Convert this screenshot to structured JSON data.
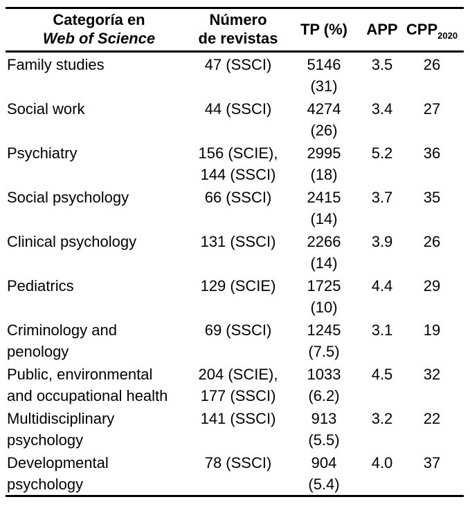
{
  "table": {
    "header": {
      "categoria": {
        "line1": "Categoría en",
        "line2": "Web of Science"
      },
      "numero": {
        "line1": "Número",
        "line2": "de revistas"
      },
      "tp": "TP (%)",
      "app": "APP",
      "cpp": {
        "label": "CPP",
        "subscript": "2020"
      }
    },
    "rows": [
      {
        "category": [
          "Family studies"
        ],
        "journals": [
          "47 (SSCI)"
        ],
        "tp": [
          "5146",
          "(31)"
        ],
        "app": "3.5",
        "cpp": "26"
      },
      {
        "category": [
          "Social work"
        ],
        "journals": [
          "44 (SSCI)"
        ],
        "tp": [
          "4274",
          "(26)"
        ],
        "app": "3.4",
        "cpp": "27"
      },
      {
        "category": [
          "Psychiatry"
        ],
        "journals": [
          "156 (SCIE),",
          "144 (SSCI)"
        ],
        "tp": [
          "2995",
          "(18)"
        ],
        "app": "5.2",
        "cpp": "36"
      },
      {
        "category": [
          "Social psychology"
        ],
        "journals": [
          "66 (SSCI)"
        ],
        "tp": [
          "2415",
          "(14)"
        ],
        "app": "3.7",
        "cpp": "35"
      },
      {
        "category": [
          "Clinical psychology"
        ],
        "journals": [
          "131 (SSCI)"
        ],
        "tp": [
          "2266",
          "(14)"
        ],
        "app": "3.9",
        "cpp": "26"
      },
      {
        "category": [
          "Pediatrics"
        ],
        "journals": [
          "129 (SCIE)"
        ],
        "tp": [
          "1725",
          "(10)"
        ],
        "app": "4.4",
        "cpp": "29"
      },
      {
        "category": [
          "Criminology and",
          "penology"
        ],
        "journals": [
          "69 (SSCI)"
        ],
        "tp": [
          "1245",
          "(7.5)"
        ],
        "app": "3.1",
        "cpp": "19"
      },
      {
        "category": [
          "Public, environmental",
          "and occupational health"
        ],
        "journals": [
          "204 (SCIE),",
          "177 (SSCI)"
        ],
        "tp": [
          "1033",
          "(6.2)"
        ],
        "app": "4.5",
        "cpp": "32"
      },
      {
        "category": [
          "Multidisciplinary",
          "psychology"
        ],
        "journals": [
          "141 (SSCI)"
        ],
        "tp": [
          "913",
          "(5.5)"
        ],
        "app": "3.2",
        "cpp": "22"
      },
      {
        "category": [
          "Developmental",
          "psychology"
        ],
        "journals": [
          "78 (SSCI)"
        ],
        "tp": [
          "904",
          "(5.4)"
        ],
        "app": "4.0",
        "cpp": "37"
      }
    ]
  }
}
